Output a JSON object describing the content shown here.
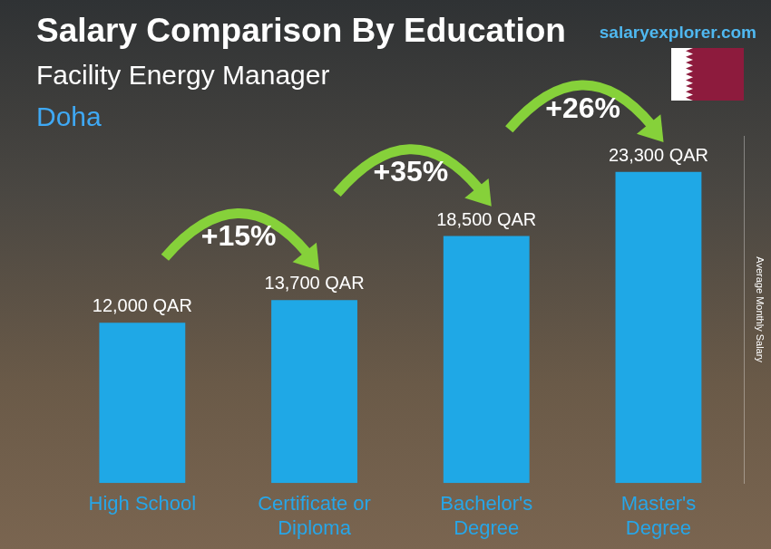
{
  "chart_data": {
    "type": "bar",
    "title": "Salary Comparison By Education",
    "subtitle": "Facility Energy Manager",
    "location": "Doha",
    "source": "salaryexplorer.com",
    "y_label": "Average Monthly Salary",
    "categories": [
      "High School",
      "Certificate or Diploma",
      "Bachelor's Degree",
      "Master's Degree"
    ],
    "values": [
      12000,
      13700,
      18500,
      23300
    ],
    "value_labels": [
      "12,000 QAR",
      "13,700 QAR",
      "18,500 QAR",
      "23,300 QAR"
    ],
    "data_labels": true,
    "annotations": [
      "+15%",
      "+35%",
      "+26%"
    ],
    "color": "#1fa8e6",
    "ylim": [
      0,
      26000
    ],
    "tick_labels": "x",
    "grid": false
  }
}
